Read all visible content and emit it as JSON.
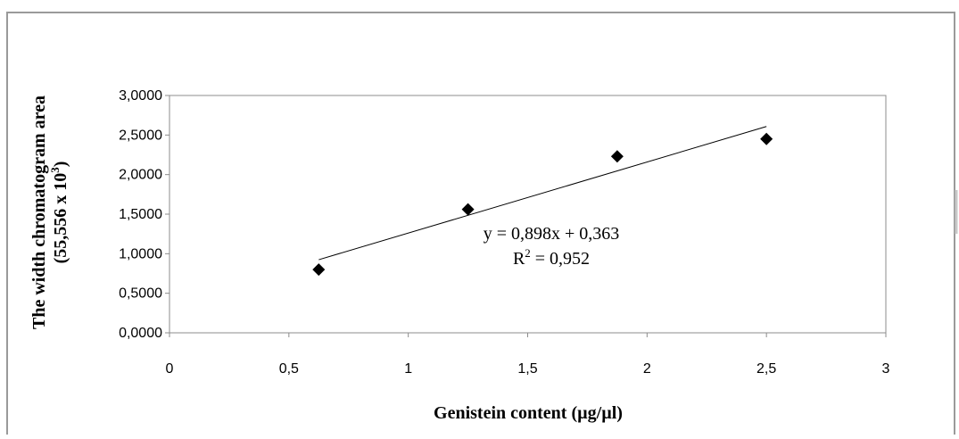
{
  "chart_data": {
    "type": "scatter",
    "title": "",
    "xlabel": "Genistein content (µg/µl)",
    "ylabel_line1": "The width chromatogram area",
    "ylabel_line2_prefix": "(55,556 x 10",
    "ylabel_line2_exponent": "3",
    "ylabel_line2_suffix": ")",
    "xlim": [
      0,
      3
    ],
    "ylim": [
      0,
      3
    ],
    "x_ticks": [
      0,
      0.5,
      1,
      1.5,
      2,
      2.5,
      3
    ],
    "x_tick_labels": [
      "0",
      "0,5",
      "1",
      "1,5",
      "2",
      "2,5",
      "3"
    ],
    "y_ticks": [
      0,
      0.5,
      1,
      1.5,
      2,
      2.5,
      3
    ],
    "y_tick_labels": [
      "0,0000",
      "0,5000",
      "1,0000",
      "1,5000",
      "2,0000",
      "2,5000",
      "3,0000"
    ],
    "grid": false,
    "legend": "none",
    "series": [
      {
        "marker": "diamond",
        "color": "#000000",
        "points": [
          {
            "x": 0.625,
            "y": 0.8
          },
          {
            "x": 1.25,
            "y": 1.56
          },
          {
            "x": 1.875,
            "y": 2.23
          },
          {
            "x": 2.5,
            "y": 2.45
          }
        ]
      }
    ],
    "trendline": {
      "slope": 0.898,
      "intercept": 0.363,
      "x_range": [
        0.625,
        2.5
      ],
      "color": "#000000"
    },
    "annotations": {
      "equation": "y = 0,898x + 0,363",
      "r2_prefix": "R",
      "r2_exponent": "2",
      "r2_suffix": " = 0,952"
    }
  }
}
